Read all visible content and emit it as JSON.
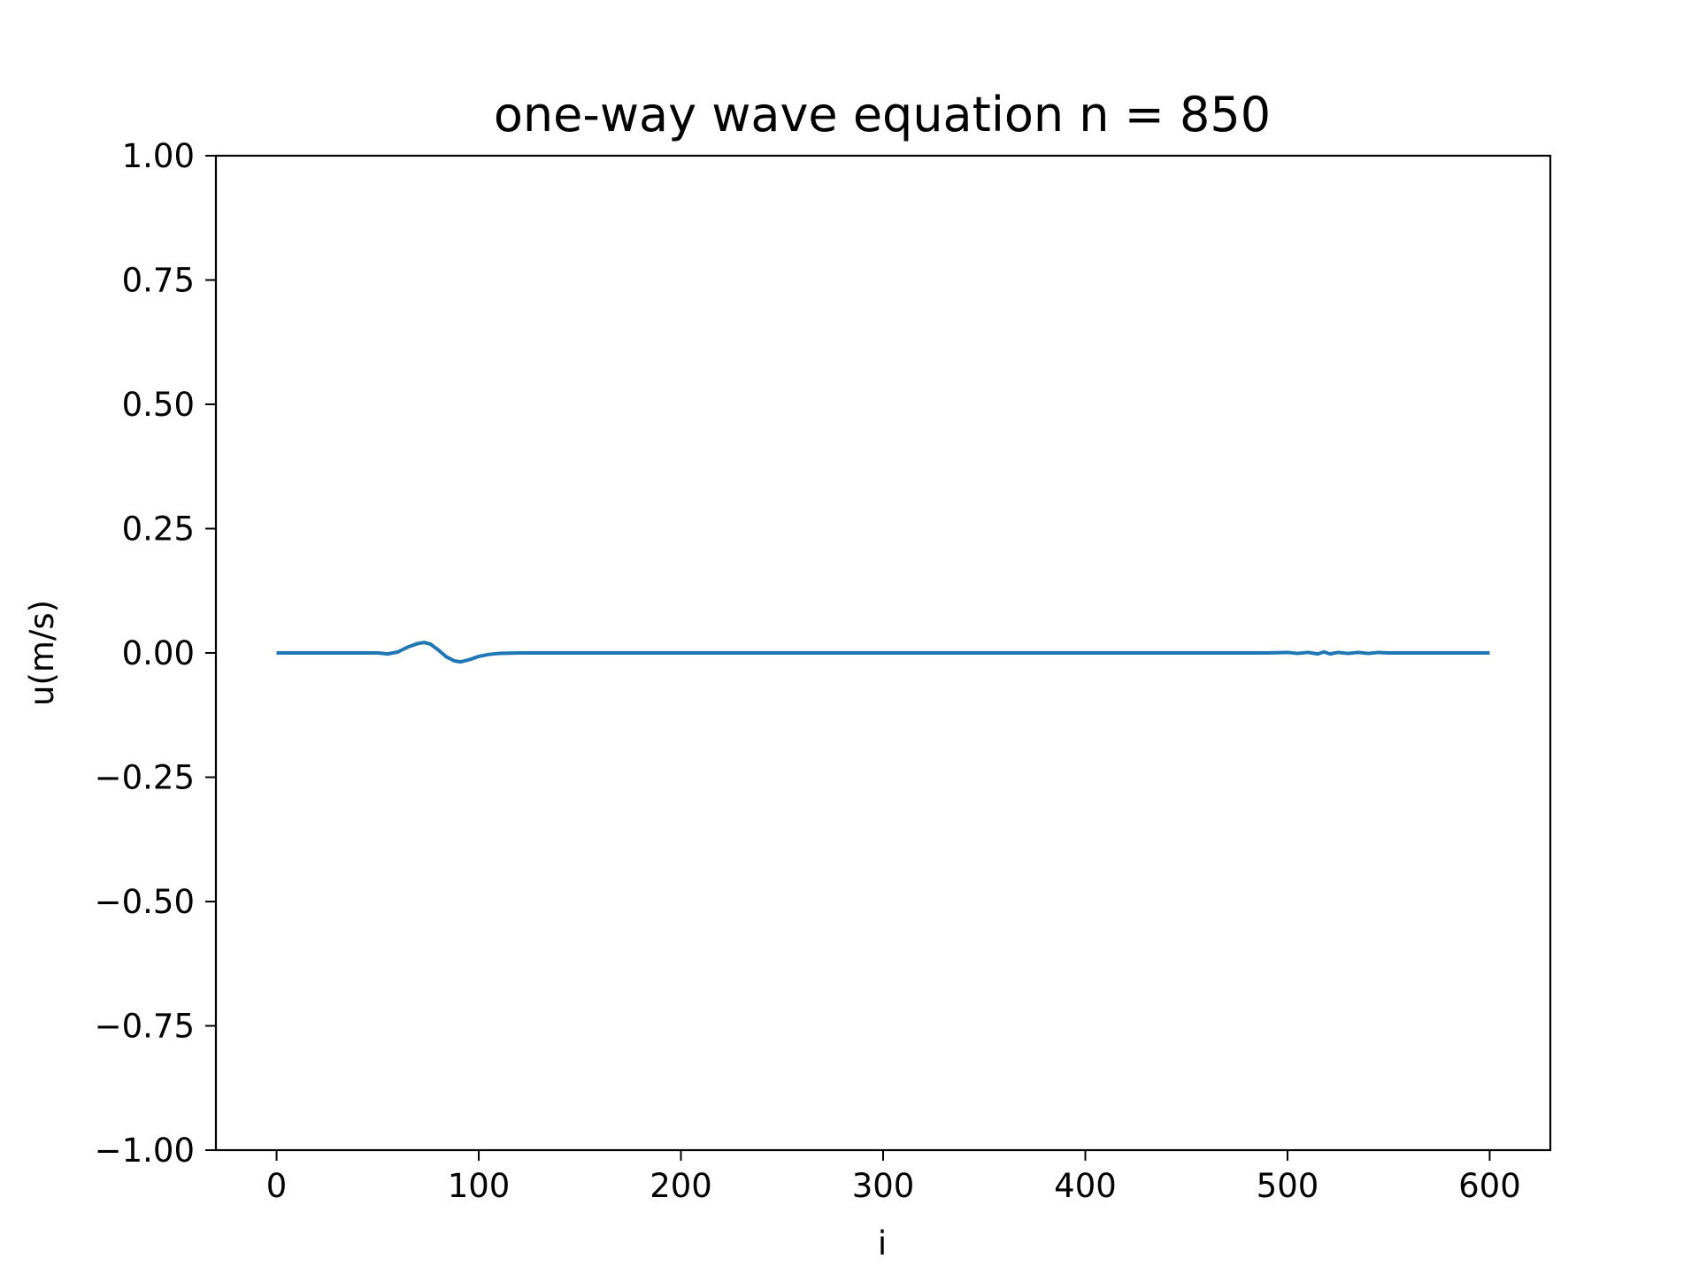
{
  "chart_data": {
    "type": "line",
    "title": "one-way wave equation  n = 850",
    "xlabel": "i",
    "ylabel": "u(m/s)",
    "xlim": [
      -30,
      630
    ],
    "ylim": [
      -1.0,
      1.0
    ],
    "xticks": [
      0,
      100,
      200,
      300,
      400,
      500,
      600
    ],
    "xtick_labels": [
      "0",
      "100",
      "200",
      "300",
      "400",
      "500",
      "600"
    ],
    "yticks": [
      1.0,
      0.75,
      0.5,
      0.25,
      0.0,
      -0.25,
      -0.5,
      -0.75,
      -1.0
    ],
    "ytick_labels": [
      "1.00",
      "0.75",
      "0.50",
      "0.25",
      "0.00",
      "−0.25",
      "−0.50",
      "−0.75",
      "−1.00"
    ],
    "grid": false,
    "series": [
      {
        "color": "#1f77b4",
        "x": [
          0,
          50,
          55,
          60,
          65,
          70,
          73,
          76,
          80,
          84,
          88,
          91,
          95,
          100,
          105,
          110,
          120,
          130,
          200,
          300,
          400,
          490,
          500,
          505,
          510,
          515,
          518,
          521,
          525,
          530,
          535,
          540,
          545,
          550,
          600
        ],
        "y": [
          0,
          0,
          -0.002,
          0.002,
          0.012,
          0.019,
          0.021,
          0.018,
          0.006,
          -0.008,
          -0.016,
          -0.018,
          -0.014,
          -0.007,
          -0.003,
          -0.001,
          0,
          0,
          0,
          0,
          0,
          0,
          0.001,
          -0.001,
          0.001,
          -0.002,
          0.002,
          -0.002,
          0.001,
          -0.001,
          0.001,
          -0.001,
          0.001,
          0,
          0
        ]
      }
    ]
  }
}
